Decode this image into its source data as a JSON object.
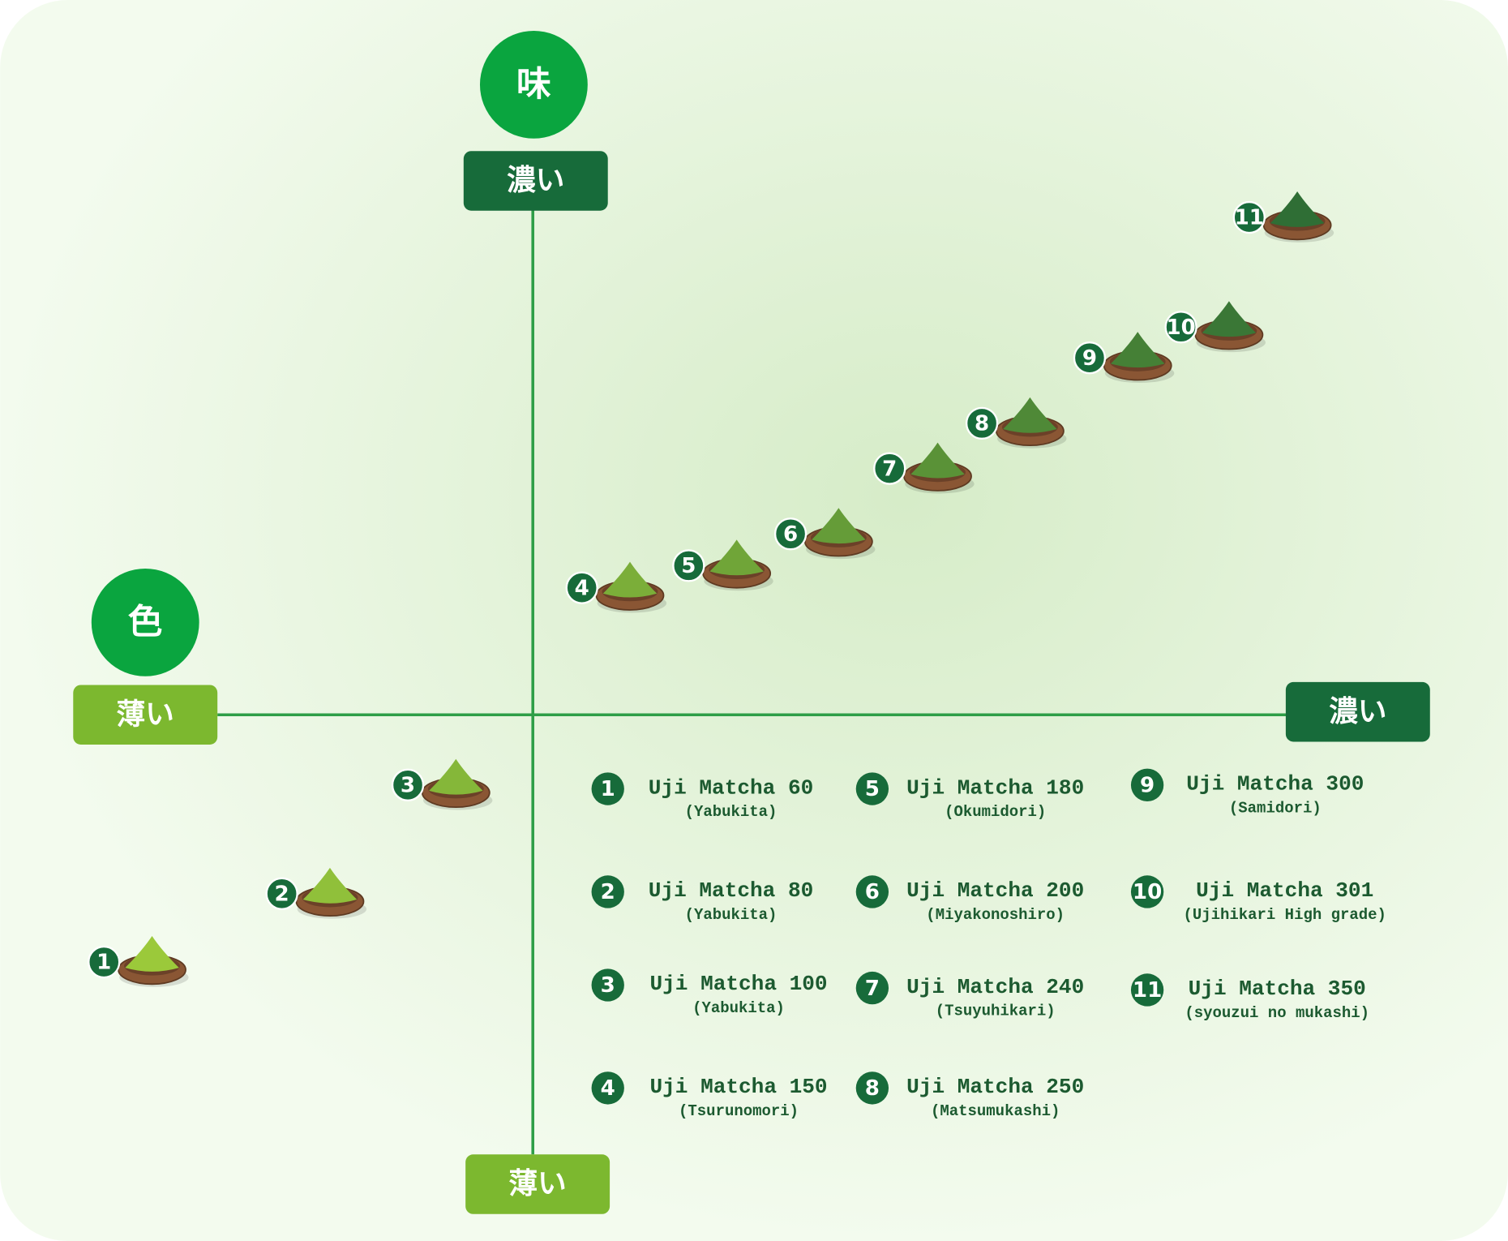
{
  "axes": {
    "taste": {
      "label": "味",
      "high": "濃い",
      "low": "薄い"
    },
    "color": {
      "label": "色",
      "low": "薄い",
      "high": "濃い"
    }
  },
  "items": [
    {
      "number": "1",
      "name": "Uji Matcha 60",
      "variety": "(Yabukita)"
    },
    {
      "number": "2",
      "name": "Uji Matcha 80",
      "variety": "(Yabukita)"
    },
    {
      "number": "3",
      "name": "Uji Matcha 100",
      "variety": "(Yabukita)"
    },
    {
      "number": "4",
      "name": "Uji Matcha 150",
      "variety": "(Tsurunomori)"
    },
    {
      "number": "5",
      "name": "Uji Matcha 180",
      "variety": "(Okumidori)"
    },
    {
      "number": "6",
      "name": "Uji Matcha 200",
      "variety": "(Miyakonoshiro)"
    },
    {
      "number": "7",
      "name": "Uji Matcha 240",
      "variety": "(Tsuyuhikari)"
    },
    {
      "number": "8",
      "name": "Uji Matcha 250",
      "variety": "(Matsumukashi)"
    },
    {
      "number": "9",
      "name": "Uji Matcha 300",
      "variety": "(Samidori)"
    },
    {
      "number": "10",
      "name": "Uji Matcha 301",
      "variety": "(Ujihikari High grade)"
    },
    {
      "number": "11",
      "name": "Uji Matcha 350",
      "variety": "(syouzui no mukashi)"
    }
  ]
}
